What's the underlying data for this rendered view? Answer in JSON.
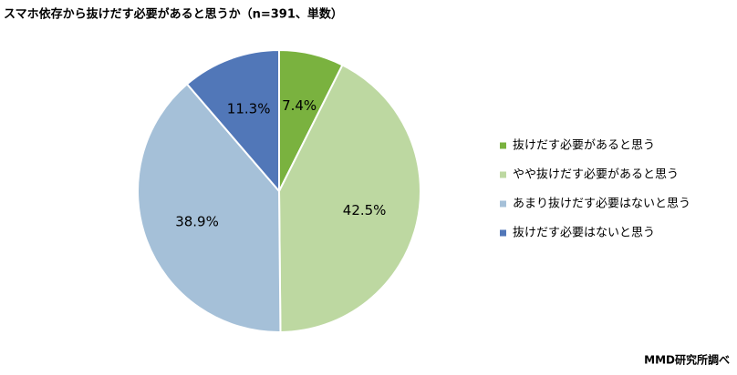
{
  "chart_data": {
    "type": "pie",
    "title": "スマホ依存から抜けだす必要があると思うか（n=391、単数）",
    "categories": [
      "抜けだす必要があると思う",
      "やや抜けだす必要があると思う",
      "あまり抜けだす必要はないと思う",
      "抜けだす必要はないと思う"
    ],
    "values": [
      7.4,
      42.5,
      38.9,
      11.3
    ],
    "value_labels": [
      "7.4%",
      "42.5%",
      "38.9%",
      "11.3%"
    ],
    "colors": [
      "#7ab23f",
      "#bdd8a1",
      "#a5c0d8",
      "#5177b8"
    ],
    "legend": "right",
    "source": "MMD研究所調べ"
  }
}
